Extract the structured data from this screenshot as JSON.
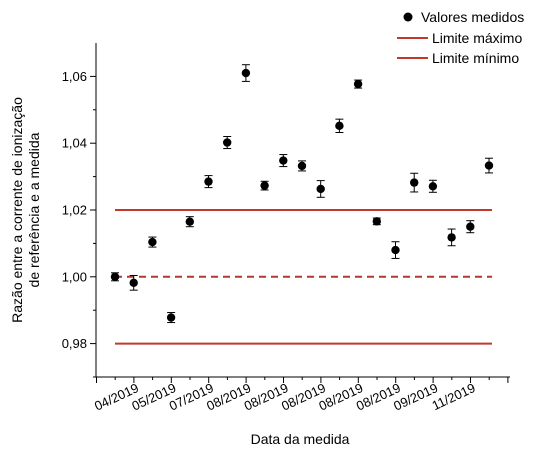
{
  "chart_data": {
    "type": "scatter",
    "xlabel": "Data da medida",
    "ylabel_lines": [
      "Razão entre a corrente de ionização",
      "de referência e a medida"
    ],
    "ylim": [
      0.97,
      1.07
    ],
    "yticks": [
      0.98,
      1.0,
      1.02,
      1.04,
      1.06
    ],
    "ytick_labels": [
      "0,98",
      "1,00",
      "1,02",
      "1,04",
      "1,06"
    ],
    "x_tick_labels": [
      "04/2019",
      "05/2019",
      "07/2019",
      "08/2019",
      "08/2019",
      "08/2019",
      "08/2019",
      "08/2019",
      "09/2019",
      "11/2019"
    ],
    "series": [
      {
        "name": "Valores medidos",
        "type": "scatter",
        "color": "#000000",
        "points": [
          {
            "y": 1.0,
            "err": 0.0012
          },
          {
            "y": 0.9982,
            "err": 0.0022
          },
          {
            "y": 1.0104,
            "err": 0.0015
          },
          {
            "y": 0.9878,
            "err": 0.0015
          },
          {
            "y": 1.0165,
            "err": 0.0015
          },
          {
            "y": 1.0285,
            "err": 0.0018
          },
          {
            "y": 1.0402,
            "err": 0.0018
          },
          {
            "y": 1.061,
            "err": 0.0025
          },
          {
            "y": 1.0273,
            "err": 0.0013
          },
          {
            "y": 1.0348,
            "err": 0.0018
          },
          {
            "y": 1.0332,
            "err": 0.0015
          },
          {
            "y": 1.0263,
            "err": 0.0025
          },
          {
            "y": 1.0452,
            "err": 0.002
          },
          {
            "y": 1.0577,
            "err": 0.0012
          },
          {
            "y": 1.0166,
            "err": 0.001
          },
          {
            "y": 1.008,
            "err": 0.0025
          },
          {
            "y": 1.0282,
            "err": 0.0028
          },
          {
            "y": 1.0271,
            "err": 0.0018
          },
          {
            "y": 1.0118,
            "err": 0.0025
          },
          {
            "y": 1.015,
            "err": 0.0018
          },
          {
            "y": 1.0333,
            "err": 0.0022
          }
        ]
      },
      {
        "name": "Limite máximo",
        "type": "hline",
        "y": 1.02,
        "color": "#c0392b",
        "style": "solid"
      },
      {
        "name": "Limite mínimo",
        "type": "hline",
        "y": 0.98,
        "color": "#c0392b",
        "style": "solid"
      },
      {
        "type": "hline",
        "y": 1.0,
        "color": "#b03a2e",
        "style": "dashed"
      }
    ],
    "legend": {
      "placement": "top-right",
      "entries": [
        {
          "label": "Valores medidos",
          "marker": "dot",
          "color": "#000000"
        },
        {
          "label": "Limite máximo",
          "marker": "line",
          "color": "#c0392b"
        },
        {
          "label": "Limite mínimo",
          "marker": "line",
          "color": "#c0392b"
        }
      ]
    },
    "grid": false
  }
}
